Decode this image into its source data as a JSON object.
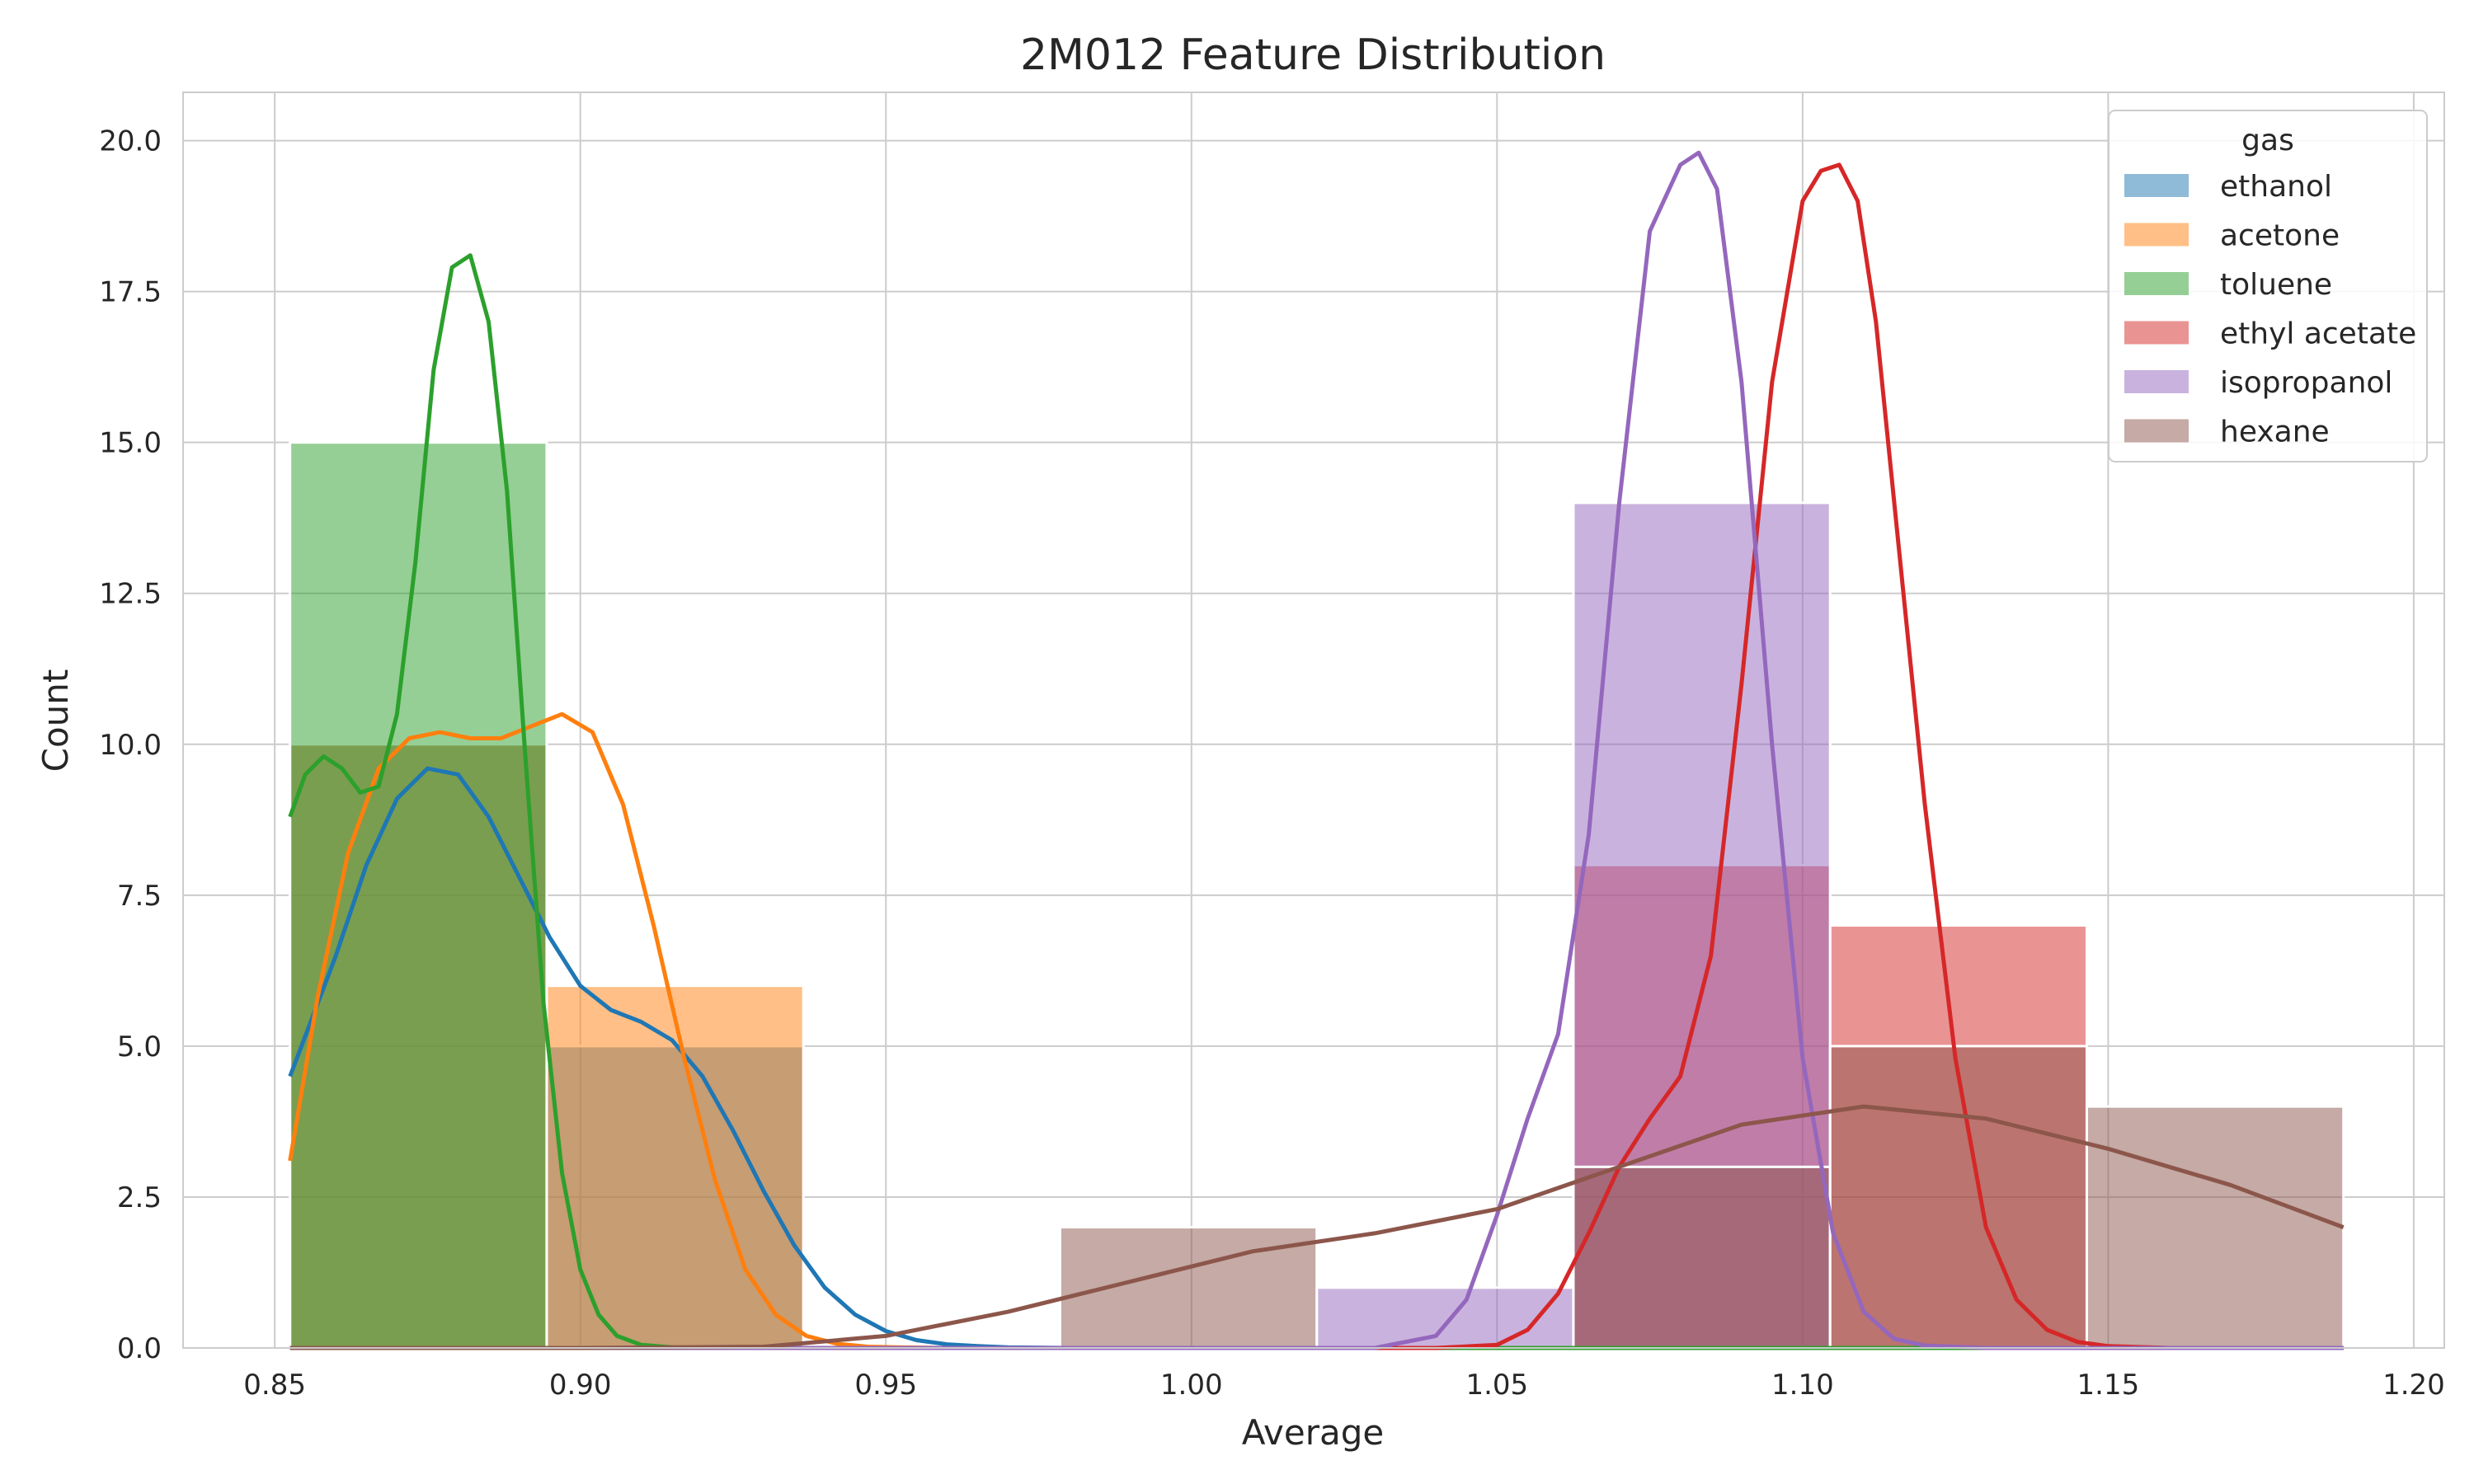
{
  "chart_data": {
    "type": "histogram",
    "title": "2M012 Feature Distribution",
    "xlabel": "Average",
    "ylabel": "Count",
    "xlim": [
      0.835,
      1.205
    ],
    "ylim": [
      0,
      20.8
    ],
    "xticks": [
      0.85,
      0.9,
      0.95,
      1.0,
      1.05,
      1.1,
      1.15,
      1.2
    ],
    "xtick_labels": [
      "0.85",
      "0.90",
      "0.95",
      "1.00",
      "1.05",
      "1.10",
      "1.15",
      "1.20"
    ],
    "yticks": [
      0,
      2.5,
      5,
      7.5,
      10,
      12.5,
      15,
      17.5,
      20
    ],
    "ytick_labels": [
      "0.0",
      "2.5",
      "5.0",
      "7.5",
      "10.0",
      "12.5",
      "15.0",
      "17.5",
      "20.0"
    ],
    "grid": true,
    "legend": {
      "title": "gas",
      "placement": "top-right"
    },
    "bin_edges": [
      0.8525,
      0.8945,
      0.9365,
      0.9785,
      1.0205,
      1.0625,
      1.1045,
      1.1465,
      1.1885
    ],
    "series": [
      {
        "name": "ethanol",
        "color": "#1f77b4",
        "counts": [
          10,
          5,
          0,
          0,
          0,
          0,
          0,
          0
        ],
        "kde": {
          "x": [
            0.8525,
            0.86,
            0.865,
            0.87,
            0.875,
            0.88,
            0.885,
            0.89,
            0.895,
            0.9,
            0.905,
            0.91,
            0.915,
            0.92,
            0.925,
            0.93,
            0.935,
            0.94,
            0.945,
            0.95,
            0.955,
            0.96,
            0.965,
            0.97,
            0.975,
            0.98,
            1.0,
            1.05,
            1.1,
            1.15,
            1.1885
          ],
          "y": [
            4.5,
            6.5,
            8.0,
            9.1,
            9.6,
            9.5,
            8.8,
            7.8,
            6.8,
            6.0,
            5.6,
            5.4,
            5.1,
            4.5,
            3.6,
            2.6,
            1.7,
            1.0,
            0.55,
            0.28,
            0.13,
            0.06,
            0.03,
            0.01,
            0.005,
            0,
            0,
            0,
            0,
            0,
            0
          ]
        }
      },
      {
        "name": "acetone",
        "color": "#ff7f0e",
        "counts": [
          10,
          6,
          0,
          0,
          0,
          0,
          0,
          0
        ],
        "kde": {
          "x": [
            0.8525,
            0.857,
            0.862,
            0.867,
            0.872,
            0.877,
            0.882,
            0.887,
            0.892,
            0.897,
            0.902,
            0.907,
            0.912,
            0.917,
            0.922,
            0.927,
            0.932,
            0.937,
            0.942,
            0.947,
            0.952,
            0.96,
            1.0,
            1.1,
            1.1885
          ],
          "y": [
            3.1,
            5.8,
            8.2,
            9.6,
            10.1,
            10.2,
            10.1,
            10.1,
            10.3,
            10.5,
            10.2,
            9.0,
            7.0,
            4.8,
            2.8,
            1.3,
            0.55,
            0.2,
            0.07,
            0.02,
            0.01,
            0,
            0,
            0,
            0
          ]
        }
      },
      {
        "name": "toluene",
        "color": "#2ca02c",
        "counts": [
          15,
          0,
          0,
          0,
          0,
          0,
          0,
          0
        ],
        "kde": {
          "x": [
            0.8525,
            0.855,
            0.858,
            0.861,
            0.864,
            0.867,
            0.87,
            0.873,
            0.876,
            0.879,
            0.882,
            0.885,
            0.888,
            0.891,
            0.894,
            0.897,
            0.9,
            0.903,
            0.906,
            0.91,
            0.915,
            0.92,
            0.93,
            1.0,
            1.1,
            1.1885
          ],
          "y": [
            8.8,
            9.5,
            9.8,
            9.6,
            9.2,
            9.3,
            10.5,
            13.0,
            16.2,
            17.9,
            18.1,
            17.0,
            14.2,
            9.8,
            5.7,
            2.9,
            1.3,
            0.55,
            0.2,
            0.05,
            0.01,
            0,
            0,
            0,
            0,
            0
          ]
        }
      },
      {
        "name": "ethyl acetate",
        "color": "#d62728",
        "counts": [
          0,
          0,
          0,
          0,
          0,
          8,
          7,
          0
        ],
        "kde": {
          "x": [
            0.8525,
            1.04,
            1.05,
            1.055,
            1.06,
            1.065,
            1.07,
            1.075,
            1.08,
            1.085,
            1.09,
            1.095,
            1.1,
            1.103,
            1.106,
            1.109,
            1.112,
            1.115,
            1.12,
            1.125,
            1.13,
            1.135,
            1.14,
            1.145,
            1.15,
            1.16,
            1.1885
          ],
          "y": [
            0,
            0,
            0.05,
            0.3,
            0.9,
            1.9,
            3.0,
            3.8,
            4.5,
            6.5,
            11.0,
            16.0,
            19.0,
            19.5,
            19.6,
            19.0,
            17.0,
            14.0,
            9.0,
            4.8,
            2.0,
            0.8,
            0.3,
            0.1,
            0.03,
            0,
            0
          ]
        }
      },
      {
        "name": "isopropanol",
        "color": "#9467bd",
        "counts": [
          0,
          0,
          0,
          0,
          1,
          14,
          0,
          0
        ],
        "kde": {
          "x": [
            0.8525,
            1.03,
            1.04,
            1.045,
            1.05,
            1.055,
            1.06,
            1.065,
            1.07,
            1.075,
            1.08,
            1.083,
            1.086,
            1.09,
            1.095,
            1.1,
            1.105,
            1.11,
            1.115,
            1.12,
            1.13,
            1.1885
          ],
          "y": [
            0,
            0,
            0.2,
            0.8,
            2.2,
            3.8,
            5.2,
            8.5,
            14.0,
            18.5,
            19.6,
            19.8,
            19.2,
            16.0,
            10.0,
            4.8,
            1.9,
            0.6,
            0.15,
            0.04,
            0,
            0
          ]
        }
      },
      {
        "name": "hexane",
        "color": "#8c564b",
        "counts": [
          0,
          0,
          0,
          2,
          0,
          3,
          5,
          4
        ],
        "kde": {
          "x": [
            0.8525,
            0.9,
            0.93,
            0.95,
            0.97,
            0.99,
            1.01,
            1.03,
            1.05,
            1.07,
            1.09,
            1.11,
            1.13,
            1.15,
            1.17,
            1.1885
          ],
          "y": [
            0,
            0,
            0.02,
            0.2,
            0.6,
            1.1,
            1.6,
            1.9,
            2.3,
            3.0,
            3.7,
            4.0,
            3.8,
            3.3,
            2.7,
            2.0
          ]
        }
      }
    ]
  }
}
